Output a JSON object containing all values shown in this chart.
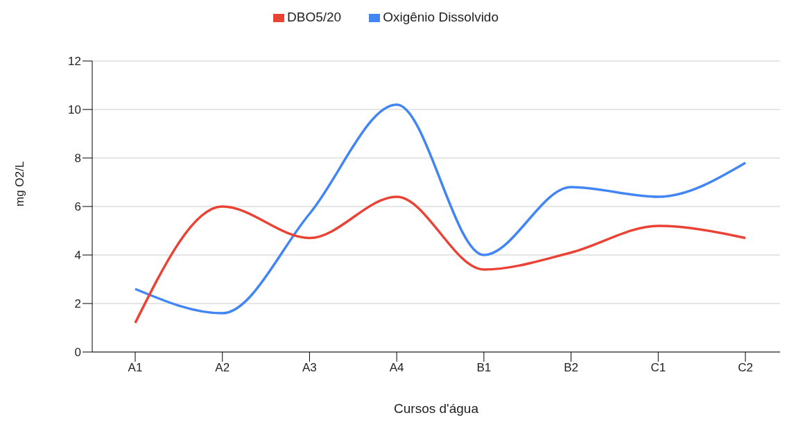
{
  "chart_data": {
    "type": "line",
    "xlabel": "Cursos d'água",
    "ylabel": "mg O2/L",
    "categories": [
      "A1",
      "A2",
      "A3",
      "A4",
      "B1",
      "B2",
      "C1",
      "C2"
    ],
    "series": [
      {
        "name": "Oxigênio Dissolvido",
        "color": "#4285f4",
        "values": [
          2.6,
          1.6,
          5.7,
          10.2,
          4.0,
          6.8,
          6.4,
          7.8
        ]
      },
      {
        "name": "DBO5/20",
        "color": "#ea4335",
        "values": [
          1.2,
          6.0,
          4.7,
          6.4,
          3.4,
          4.1,
          5.2,
          4.7
        ]
      }
    ],
    "ylim": [
      0,
      12
    ],
    "yticks": [
      0,
      2,
      4,
      6,
      8,
      10,
      12
    ],
    "grid": "y",
    "legend": "top",
    "marker": "none",
    "line_style": "solid"
  }
}
